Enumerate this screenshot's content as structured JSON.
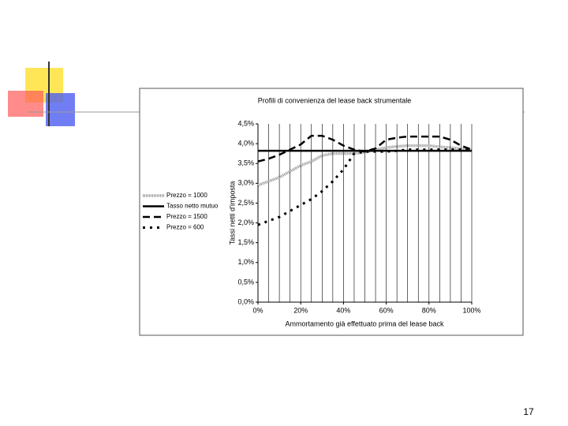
{
  "chart_data": {
    "type": "line",
    "title": "Profili di convenienza del lease back strumentale",
    "x_label": "Ammortamento già effettuato prima del lease back",
    "y_label": "Tassi netti d'imposta",
    "x": [
      0,
      5,
      10,
      15,
      20,
      25,
      30,
      35,
      40,
      45,
      50,
      55,
      60,
      65,
      70,
      75,
      80,
      85,
      90,
      95,
      100
    ],
    "series": [
      {
        "name": "Prezzo = 1000",
        "color": "#8c8c8c",
        "dash": "checker",
        "values": [
          2.95,
          3.05,
          3.15,
          3.3,
          3.45,
          3.55,
          3.7,
          3.75,
          3.75,
          3.75,
          3.78,
          3.85,
          3.9,
          3.93,
          3.95,
          3.95,
          3.95,
          3.92,
          3.9,
          3.87,
          3.85
        ]
      },
      {
        "name": "Tasso netto mutuo",
        "color": "#000000",
        "dash": "solid",
        "values": [
          3.82,
          3.82,
          3.82,
          3.82,
          3.82,
          3.82,
          3.82,
          3.82,
          3.82,
          3.82,
          3.82,
          3.82,
          3.82,
          3.82,
          3.82,
          3.82,
          3.82,
          3.82,
          3.82,
          3.82,
          3.82
        ]
      },
      {
        "name": "Prezzo = 1500",
        "color": "#000000",
        "dash": "dashed",
        "values": [
          3.55,
          3.62,
          3.72,
          3.85,
          3.98,
          4.2,
          4.2,
          4.1,
          3.95,
          3.85,
          3.8,
          3.88,
          4.1,
          4.15,
          4.18,
          4.18,
          4.18,
          4.18,
          4.1,
          3.95,
          3.85
        ]
      },
      {
        "name": "Prezzo = 600",
        "color": "#000000",
        "dash": "dotted",
        "values": [
          1.95,
          2.05,
          2.15,
          2.3,
          2.45,
          2.6,
          2.8,
          3.05,
          3.35,
          3.75,
          3.8,
          3.8,
          3.8,
          3.82,
          3.85,
          3.85,
          3.85,
          3.85,
          3.85,
          3.85,
          3.85
        ]
      }
    ],
    "xlim": [
      0,
      100
    ],
    "xticks": [
      {
        "value": 0,
        "label": "0%"
      },
      {
        "value": 20,
        "label": "20%"
      },
      {
        "value": 40,
        "label": "40%"
      },
      {
        "value": 60,
        "label": "60%"
      },
      {
        "value": 80,
        "label": "80%"
      },
      {
        "value": 100,
        "label": "100%"
      }
    ],
    "x_gridlines": [
      0,
      5,
      10,
      15,
      20,
      25,
      30,
      35,
      40,
      45,
      50,
      55,
      60,
      65,
      70,
      75,
      80,
      85,
      90,
      95,
      100
    ],
    "ylim": [
      0,
      4.5
    ],
    "yticks": [
      {
        "value": 0,
        "label": "0,0%"
      },
      {
        "value": 0.5,
        "label": "0,5%"
      },
      {
        "value": 1,
        "label": "1,0%"
      },
      {
        "value": 1.5,
        "label": "1,5%"
      },
      {
        "value": 2,
        "label": "2,0%"
      },
      {
        "value": 2.5,
        "label": "2,5%"
      },
      {
        "value": 3,
        "label": "3,0%"
      },
      {
        "value": 3.5,
        "label": "3,5%"
      },
      {
        "value": 4,
        "label": "4,0%"
      },
      {
        "value": 4.5,
        "label": "4,5%"
      }
    ],
    "legend": "left"
  },
  "page_number": "17"
}
